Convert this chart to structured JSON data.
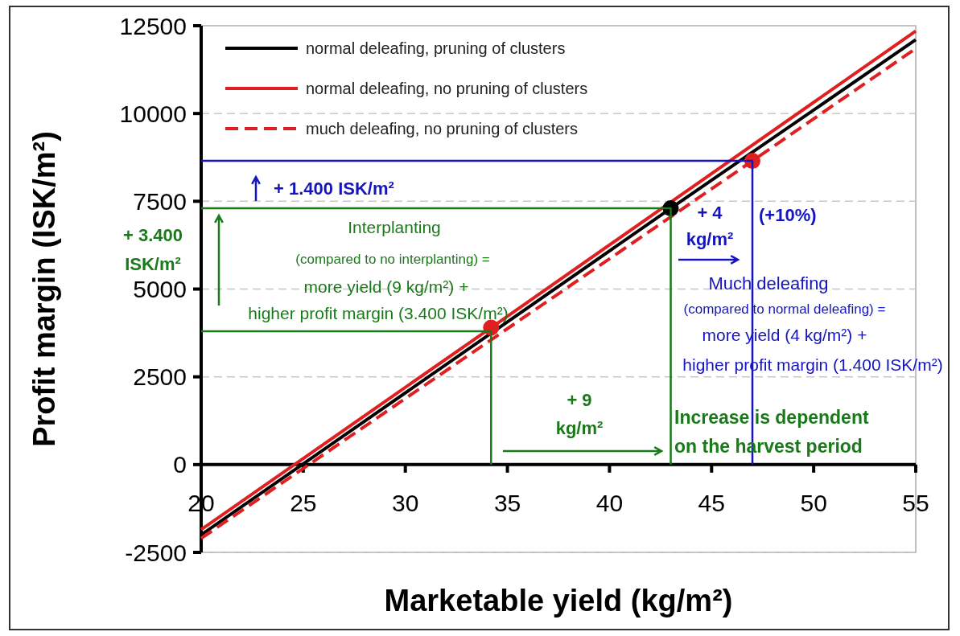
{
  "chart_data": {
    "type": "line",
    "xlabel": "Marketable yield (kg/m²)",
    "ylabel": "Profit margin (ISK/m²)",
    "xlim": [
      20,
      55
    ],
    "xticks": [
      20,
      25,
      30,
      35,
      40,
      45,
      50,
      55
    ],
    "ylim": [
      -2500,
      12500
    ],
    "yticks": [
      -2500,
      0,
      2500,
      5000,
      7500,
      10000,
      12500
    ],
    "grid": "y",
    "legend": "top left",
    "marker": "circle",
    "series": [
      {
        "name": "normal deleafing, pruning of clusters",
        "color": "#000000",
        "x": [
          20,
          43,
          55
        ],
        "values": [
          -2000,
          7300,
          12100
        ],
        "line_style": "solid",
        "marker": "none"
      },
      {
        "name": "normal deleafing, no pruning of clusters",
        "color": "#e02020",
        "x": [
          20,
          34.2,
          55
        ],
        "values": [
          -1850,
          3900,
          12350
        ],
        "line_style": "solid",
        "marker": "none"
      },
      {
        "name": "much deleafing, no pruning of clusters",
        "color": "#e02020",
        "x": [
          20,
          47,
          55
        ],
        "values": [
          -2100,
          8650,
          11850
        ],
        "line_style": "dashed",
        "marker": "none"
      },
      {
        "type": "scatter",
        "color": "#000000",
        "x": [
          43
        ],
        "values": [
          7300
        ]
      },
      {
        "type": "scatter",
        "color": "#e02020",
        "x": [
          34.2
        ],
        "values": [
          3900
        ]
      },
      {
        "type": "scatter",
        "color": "#e02020",
        "x": [
          47
        ],
        "values": [
          8650
        ]
      },
      {
        "color": "#1a7a1a",
        "x": [
          20,
          34.2,
          34.2
        ],
        "values": [
          3800,
          3800,
          0
        ],
        "line_style": "solid",
        "marker": "none"
      },
      {
        "color": "#1a7a1a",
        "x": [
          20,
          43,
          43
        ],
        "values": [
          7300,
          7300,
          0
        ],
        "line_style": "solid",
        "marker": "none"
      },
      {
        "color": "#1515c0",
        "x": [
          20,
          47,
          47
        ],
        "values": [
          8650,
          8650,
          0
        ],
        "line_style": "solid",
        "marker": "none"
      }
    ],
    "annotations": [
      "+ 1.400 ISK/m²",
      "+ 3.400 ISK/m²",
      "Interplanting",
      "(compared to no interplanting) =",
      "more yield (9 kg/m²) +",
      "higher profit margin (3.400 ISK/m²)",
      "+ 4 kg/m²",
      "(+10%)",
      "Much deleafing",
      "(compared to normal deleafing) =",
      "more yield (4 kg/m²) +",
      "higher profit margin (1.400 ISK/m²)",
      "+ 9 kg/m²",
      "Increase is dependent on the harvest period"
    ]
  }
}
